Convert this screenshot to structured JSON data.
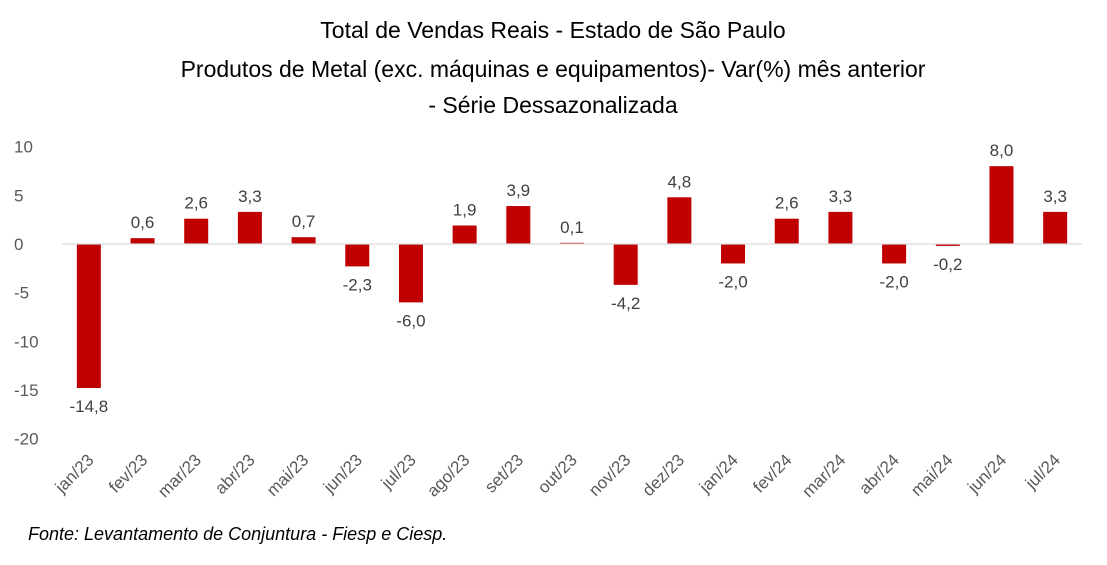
{
  "chart_data": {
    "type": "bar",
    "title_lines": [
      "Total de Vendas Reais - Estado de São Paulo",
      "Produtos de Metal (exc. máquinas e equipamentos)- Var(%) mês anterior",
      "- Série Dessazonalizada"
    ],
    "categories": [
      "jan/23",
      "fev/23",
      "mar/23",
      "abr/23",
      "mai/23",
      "jun/23",
      "jul/23",
      "ago/23",
      "set/23",
      "out/23",
      "nov/23",
      "dez/23",
      "jan/24",
      "fev/24",
      "mar/24",
      "abr/24",
      "mai/24",
      "jun/24",
      "jul/24"
    ],
    "values": [
      -14.8,
      0.6,
      2.6,
      3.3,
      0.7,
      -2.3,
      -6.0,
      1.9,
      3.9,
      0.1,
      -4.2,
      4.8,
      -2.0,
      2.6,
      3.3,
      -2.0,
      -0.2,
      8.0,
      3.3
    ],
    "data_labels": [
      "-14,8",
      "0,6",
      "2,6",
      "3,3",
      "0,7",
      "-2,3",
      "-6,0",
      "1,9",
      "3,9",
      "0,1",
      "-4,2",
      "4,8",
      "-2,0",
      "2,6",
      "3,3",
      "-2,0",
      "-0,2",
      "8,0",
      "3,3"
    ],
    "yticks": [
      10,
      5,
      0,
      -5,
      -10,
      -15,
      -20
    ],
    "ytick_labels": [
      "10",
      "5",
      "0",
      "-5",
      "-10",
      "-15",
      "-20"
    ],
    "ylim": [
      -20,
      10
    ],
    "xlabel": "",
    "ylabel": "",
    "grid": false,
    "legend": "none",
    "bar_color": "#c00000",
    "axis_color": "#d9d9d9"
  },
  "footnote": "Fonte: Levantamento de Conjuntura - Fiesp e Ciesp."
}
